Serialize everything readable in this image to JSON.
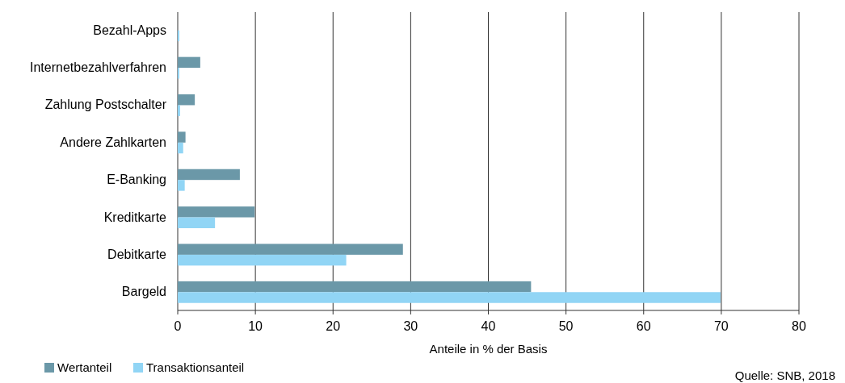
{
  "chart_data": {
    "type": "bar",
    "orientation": "horizontal",
    "xlabel": "Anteile in % der Basis",
    "categories": [
      "Bezahl-Apps",
      "Internetbezahlverfahren",
      "Zahlung Postschalter",
      "Andere Zahlkarten",
      "E-Banking",
      "Kreditkarte",
      "Debitkarte",
      "Bargeld"
    ],
    "series": [
      {
        "name": "Wertanteil",
        "color": "#6b98a8",
        "values": [
          null,
          2.9,
          2.2,
          1.0,
          8.0,
          9.9,
          29.0,
          45.5
        ]
      },
      {
        "name": "Transaktionsanteil",
        "color": "#91d5f5",
        "values": [
          0.2,
          0.2,
          0.3,
          0.7,
          0.9,
          4.8,
          21.7,
          69.9
        ]
      }
    ],
    "xlim": [
      0,
      80
    ],
    "xticks": [
      0,
      10,
      20,
      30,
      40,
      50,
      60,
      70,
      80
    ],
    "grid": "x",
    "legend": "bottom left",
    "annotations": [
      "Quelle: SNB, 2018"
    ]
  }
}
